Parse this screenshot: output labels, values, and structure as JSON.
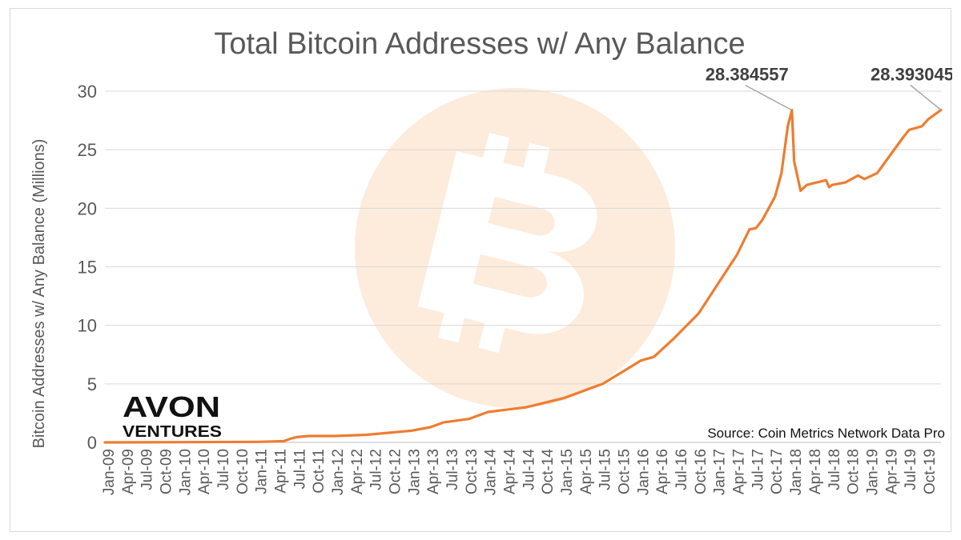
{
  "chart_data": {
    "type": "line",
    "title": "Total Bitcoin Addresses w/ Any Balance",
    "ylabel": "Bitcoin Addresses w/ Any Balance (Millions)",
    "xlabel": "",
    "ylim": [
      0,
      30
    ],
    "yticks": [
      0,
      5,
      10,
      15,
      20,
      25,
      30
    ],
    "xlim": [
      "2009-01",
      "2019-12"
    ],
    "grid": true,
    "x_tick_labels": [
      "Jan-09",
      "Apr-09",
      "Jul-09",
      "Oct-09",
      "Jan-10",
      "Apr-10",
      "Jul-10",
      "Oct-10",
      "Jan-11",
      "Apr-11",
      "Jul-11",
      "Oct-11",
      "Jan-12",
      "Apr-12",
      "Jul-12",
      "Oct-12",
      "Jan-13",
      "Apr-13",
      "Jul-13",
      "Oct-13",
      "Jan-14",
      "Apr-14",
      "Jul-14",
      "Oct-14",
      "Jan-15",
      "Apr-15",
      "Jul-15",
      "Oct-15",
      "Jan-16",
      "Apr-16",
      "Jul-16",
      "Oct-16",
      "Jan-17",
      "Apr-17",
      "Jul-17",
      "Oct-17",
      "Jan-18",
      "Apr-18",
      "Jul-18",
      "Oct-18",
      "Jan-19",
      "Apr-19",
      "Jul-19",
      "Oct-19"
    ],
    "series": [
      {
        "color": "#ed7d31",
        "x": [
          "2009-01",
          "2010-01",
          "2011-01",
          "2011-05",
          "2011-06",
          "2011-07",
          "2011-09",
          "2012-01",
          "2012-06",
          "2013-01",
          "2013-04",
          "2013-06",
          "2013-10",
          "2014-01",
          "2014-07",
          "2015-01",
          "2015-07",
          "2015-10",
          "2016-01",
          "2016-03",
          "2016-04",
          "2016-06",
          "2016-10",
          "2017-01",
          "2017-04",
          "2017-06",
          "2017-07",
          "2017-08",
          "2017-10",
          "2017-11",
          "2017-12",
          "2017-12-20",
          "2018-01",
          "2018-02",
          "2018-03",
          "2018-06",
          "2018-06-15",
          "2018-07",
          "2018-09",
          "2018-10",
          "2018-11",
          "2018-12",
          "2019-02",
          "2019-04",
          "2019-06",
          "2019-07",
          "2019-09",
          "2019-10",
          "2019-12"
        ],
        "values": [
          0.0,
          0.02,
          0.05,
          0.1,
          0.3,
          0.45,
          0.55,
          0.55,
          0.65,
          1.0,
          1.3,
          1.7,
          2.0,
          2.6,
          3.0,
          3.8,
          5.0,
          6.0,
          7.0,
          7.3,
          7.8,
          8.8,
          11.0,
          13.5,
          16.0,
          18.2,
          18.3,
          19.0,
          21.0,
          23.0,
          27.0,
          28.384557,
          24.0,
          21.5,
          22.0,
          22.4,
          21.8,
          22.0,
          22.2,
          22.5,
          22.8,
          22.5,
          23.0,
          24.5,
          26.0,
          26.7,
          27.0,
          27.6,
          28.393045
        ]
      }
    ],
    "annotations": [
      {
        "text": "28.384557",
        "x": "2017-12-20",
        "y": 28.384557
      },
      {
        "text": "28.393045",
        "x": "2019-12",
        "y": 28.393045
      }
    ],
    "source": "Source: Coin Metrics Network Data Pro",
    "logo": {
      "line1": "AVON",
      "line2": "VENTURES"
    },
    "watermark": "bitcoin-logo-icon"
  }
}
